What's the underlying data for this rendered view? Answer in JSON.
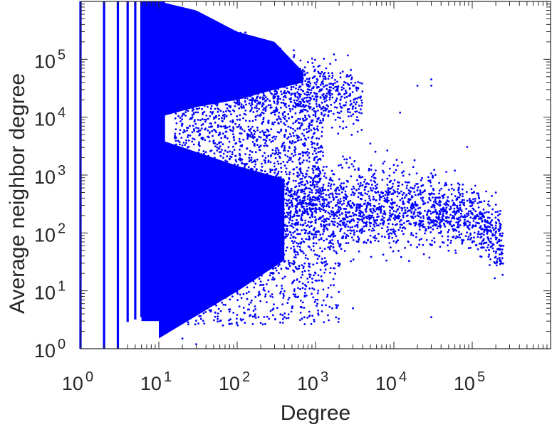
{
  "chart_data": {
    "type": "scatter",
    "title": "",
    "xlabel": "Degree",
    "ylabel": "Average neighbor degree",
    "x_scale": "log",
    "y_scale": "log",
    "xlim": [
      1,
      1000000
    ],
    "ylim": [
      1,
      1000000
    ],
    "grid": false,
    "legend": "none",
    "marker_color": "#0000ff",
    "x_ticks": [
      {
        "base": "10",
        "exp": "0"
      },
      {
        "base": "10",
        "exp": "1"
      },
      {
        "base": "10",
        "exp": "2"
      },
      {
        "base": "10",
        "exp": "3"
      },
      {
        "base": "10",
        "exp": "4"
      },
      {
        "base": "10",
        "exp": "5"
      }
    ],
    "y_ticks": [
      {
        "base": "10",
        "exp": "0"
      },
      {
        "base": "10",
        "exp": "1"
      },
      {
        "base": "10",
        "exp": "2"
      },
      {
        "base": "10",
        "exp": "3"
      },
      {
        "base": "10",
        "exp": "4"
      },
      {
        "base": "10",
        "exp": "5"
      }
    ],
    "series": [
      {
        "upper_branch_envelope": {
          "x": [
            10,
            30,
            100,
            300,
            700
          ],
          "y_low": [
            10000,
            15000,
            20000,
            30000,
            40000
          ],
          "y_high": [
            1000000,
            700000,
            300000,
            200000,
            60000
          ]
        },
        "lower_branch_trend": {
          "x": [
            10,
            100,
            1000,
            10000,
            100000,
            250000
          ],
          "y": [
            60,
            100,
            200,
            300,
            200,
            60
          ]
        },
        "discrete_columns_x": [
          1,
          2,
          3,
          4,
          5,
          6,
          7,
          8,
          9
        ],
        "sample_points": [
          {
            "x": 30000,
            "y": 45000
          },
          {
            "x": 30000,
            "y": 35000
          },
          {
            "x": 20000,
            "y": 35000
          },
          {
            "x": 1500,
            "y": 25000
          },
          {
            "x": 12000,
            "y": 12000
          },
          {
            "x": 5000,
            "y": 3500
          },
          {
            "x": 10000,
            "y": 1500
          },
          {
            "x": 200000,
            "y": 500
          },
          {
            "x": 100000,
            "y": 300
          },
          {
            "x": 250000,
            "y": 60
          },
          {
            "x": 60000,
            "y": 1200
          },
          {
            "x": 30000,
            "y": 3.5
          },
          {
            "x": 3000,
            "y": 5
          },
          {
            "x": 400,
            "y": 3.5
          },
          {
            "x": 1000,
            "y": 7
          },
          {
            "x": 20,
            "y": 1.5
          },
          {
            "x": 30,
            "y": 1.2
          },
          {
            "x": 150000,
            "y": 50
          },
          {
            "x": 3000,
            "y": 500
          },
          {
            "x": 20000,
            "y": 200
          }
        ]
      }
    ]
  }
}
